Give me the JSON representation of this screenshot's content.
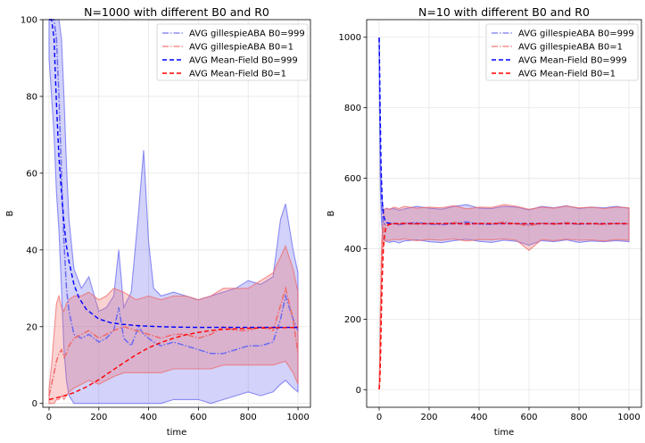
{
  "chart_data": [
    {
      "type": "line",
      "title": "N=1000 with different B0 and R0",
      "xlabel": "time",
      "ylabel": "B",
      "xlim": [
        -25,
        1050
      ],
      "ylim": [
        -1,
        100
      ],
      "xticks": [
        0,
        200,
        400,
        600,
        800,
        1000
      ],
      "yticks": [
        0,
        20,
        40,
        60,
        80,
        100
      ],
      "xtick_labels": [
        "0",
        "200",
        "400",
        "600",
        "800",
        "1000"
      ],
      "ytick_labels": [
        "0",
        "20",
        "40",
        "60",
        "80",
        "100"
      ],
      "grid": true,
      "legend_position": "top-right",
      "series": [
        {
          "name": "AVG gillespieABA B0=999",
          "style": "dashdot",
          "color": "#6a6af0",
          "x": [
            0,
            10,
            20,
            30,
            40,
            50,
            60,
            70,
            80,
            100,
            130,
            160,
            200,
            230,
            260,
            280,
            300,
            330,
            360,
            380,
            400,
            420,
            450,
            500,
            550,
            600,
            650,
            700,
            750,
            800,
            850,
            900,
            930,
            950,
            980,
            1000
          ],
          "values": [
            100,
            100,
            100,
            95,
            80,
            60,
            42,
            30,
            24,
            18,
            17,
            18,
            16,
            17,
            19,
            25,
            17,
            15,
            20,
            18,
            17,
            16,
            15,
            16,
            15,
            14,
            13,
            13,
            14,
            15,
            15,
            16,
            22,
            28,
            22,
            19
          ],
          "band_upper": [
            100,
            100,
            100,
            100,
            100,
            95,
            80,
            62,
            48,
            35,
            30,
            33,
            24,
            25,
            28,
            40,
            25,
            29,
            50,
            66,
            42,
            30,
            28,
            29,
            28,
            27,
            28,
            29,
            30,
            32,
            31,
            33,
            48,
            52,
            40,
            34
          ],
          "band_lower": [
            90,
            80,
            70,
            55,
            45,
            30,
            14,
            6,
            2,
            0,
            0,
            0,
            0,
            0,
            0,
            0,
            0,
            0,
            0,
            0,
            0,
            0,
            0,
            1,
            1,
            1,
            0,
            1,
            2,
            3,
            2,
            3,
            5,
            6,
            4,
            3
          ]
        },
        {
          "name": "AVG gillespieABA B0=1",
          "style": "dashdot",
          "color": "#f06a6a",
          "x": [
            0,
            10,
            20,
            30,
            40,
            50,
            60,
            70,
            80,
            100,
            130,
            160,
            200,
            230,
            260,
            300,
            350,
            400,
            450,
            500,
            550,
            600,
            650,
            700,
            750,
            800,
            850,
            900,
            950,
            980,
            1000
          ],
          "values": [
            2,
            5,
            8,
            11,
            13,
            14,
            12,
            13,
            15,
            17,
            18,
            19,
            17,
            18,
            19,
            20,
            19,
            18,
            17,
            18,
            18,
            17,
            18,
            20,
            19,
            19,
            20,
            19,
            30,
            22,
            13
          ],
          "band_upper": [
            4,
            10,
            18,
            26,
            28,
            25,
            24,
            26,
            27,
            28,
            28,
            29,
            27,
            28,
            30,
            29,
            27,
            28,
            27,
            28,
            28,
            27,
            28,
            30,
            30,
            30,
            32,
            34,
            41,
            35,
            29
          ],
          "band_lower": [
            0,
            0,
            0,
            1,
            1,
            2,
            1,
            2,
            3,
            4,
            5,
            6,
            5,
            6,
            7,
            8,
            8,
            8,
            8,
            9,
            9,
            9,
            9,
            10,
            10,
            10,
            10,
            10,
            11,
            8,
            5
          ]
        },
        {
          "name": "AVG Mean-Field B0=999",
          "style": "dashed",
          "color": "#0000ff",
          "x": [
            0,
            10,
            20,
            30,
            40,
            50,
            60,
            70,
            80,
            100,
            120,
            150,
            200,
            250,
            300,
            350,
            400,
            500,
            600,
            700,
            800,
            900,
            1000
          ],
          "values": [
            100,
            100,
            95,
            78,
            64,
            55,
            47,
            41,
            37,
            31,
            27.5,
            24.5,
            22,
            21,
            20.6,
            20.3,
            20.1,
            19.9,
            19.8,
            19.8,
            19.8,
            19.8,
            19.8
          ]
        },
        {
          "name": "AVG Mean-Field B0=1",
          "style": "dashed",
          "color": "#ff0000",
          "x": [
            0,
            50,
            100,
            150,
            200,
            250,
            300,
            350,
            400,
            450,
            500,
            550,
            600,
            650,
            700,
            800,
            900,
            1000
          ],
          "values": [
            1,
            1.8,
            2.8,
            4.3,
            6.2,
            8.4,
            10.6,
            12.7,
            14.5,
            15.9,
            17,
            17.9,
            18.5,
            19,
            19.3,
            19.6,
            19.7,
            19.8
          ]
        }
      ]
    },
    {
      "type": "line",
      "title": "N=10 with different B0 and R0",
      "xlabel": "time",
      "ylabel": "B",
      "xlim": [
        -50,
        1050
      ],
      "ylim": [
        -50,
        1050
      ],
      "xticks": [
        0,
        200,
        400,
        600,
        800,
        1000
      ],
      "yticks": [
        0,
        200,
        400,
        600,
        800,
        1000
      ],
      "xtick_labels": [
        "0",
        "200",
        "400",
        "600",
        "800",
        "1000"
      ],
      "ytick_labels": [
        "0",
        "200",
        "400",
        "600",
        "800",
        "1000"
      ],
      "grid": true,
      "legend_position": "top-right",
      "series": [
        {
          "name": "AVG gillespieABA B0=999",
          "style": "dashdot",
          "color": "#6a6af0",
          "x": [
            0,
            2,
            5,
            10,
            15,
            20,
            30,
            40,
            60,
            80,
            100,
            150,
            200,
            250,
            300,
            350,
            400,
            450,
            500,
            550,
            600,
            650,
            700,
            750,
            800,
            850,
            900,
            950,
            1000
          ],
          "values": [
            999,
            800,
            620,
            520,
            480,
            470,
            475,
            470,
            472,
            468,
            471,
            474,
            470,
            468,
            472,
            476,
            470,
            469,
            473,
            471,
            468,
            472,
            470,
            474,
            469,
            471,
            470,
            472,
            470
          ],
          "band_upper": [
            999,
            850,
            680,
            560,
            520,
            510,
            515,
            512,
            514,
            509,
            513,
            520,
            515,
            512,
            520,
            525,
            515,
            514,
            520,
            518,
            510,
            520,
            516,
            522,
            514,
            518,
            516,
            520,
            515
          ],
          "band_lower": [
            990,
            760,
            560,
            470,
            430,
            425,
            420,
            418,
            421,
            416,
            422,
            425,
            420,
            417,
            423,
            427,
            421,
            418,
            424,
            421,
            410,
            423,
            420,
            425,
            418,
            422,
            420,
            423,
            420
          ]
        },
        {
          "name": "AVG gillespieABA B0=1",
          "style": "dashdot",
          "color": "#f06a6a",
          "x": [
            0,
            2,
            5,
            8,
            10,
            15,
            20,
            30,
            40,
            60,
            80,
            100,
            150,
            200,
            250,
            300,
            350,
            400,
            450,
            500,
            550,
            600,
            650,
            700,
            750,
            800,
            850,
            900,
            950,
            1000
          ],
          "values": [
            1,
            50,
            180,
            300,
            380,
            440,
            465,
            470,
            468,
            472,
            470,
            474,
            469,
            472,
            470,
            475,
            468,
            472,
            471,
            476,
            470,
            465,
            472,
            469,
            474,
            470,
            471,
            468,
            472,
            470
          ],
          "band_upper": [
            1,
            80,
            230,
            350,
            420,
            480,
            510,
            515,
            512,
            518,
            514,
            520,
            515,
            518,
            516,
            522,
            513,
            518,
            517,
            525,
            520,
            512,
            518,
            515,
            521,
            516,
            518,
            514,
            518,
            516
          ],
          "band_lower": [
            1,
            20,
            130,
            250,
            340,
            400,
            420,
            425,
            423,
            427,
            425,
            428,
            423,
            426,
            424,
            428,
            422,
            426,
            425,
            428,
            424,
            395,
            426,
            423,
            427,
            424,
            425,
            422,
            426,
            424
          ]
        },
        {
          "name": "AVG Mean-Field B0=999",
          "style": "dashed",
          "color": "#0000ff",
          "x": [
            0,
            2,
            4,
            6,
            8,
            10,
            13,
            16,
            20,
            25,
            30,
            40,
            60,
            100,
            200,
            400,
            600,
            800,
            1000
          ],
          "values": [
            999,
            900,
            800,
            700,
            630,
            580,
            530,
            505,
            488,
            478,
            474,
            472,
            471,
            471,
            471,
            471,
            471,
            471,
            471
          ]
        },
        {
          "name": "AVG Mean-Field B0=1",
          "style": "dashed",
          "color": "#ff0000",
          "x": [
            0,
            2,
            4,
            6,
            8,
            10,
            12,
            15,
            18,
            22,
            26,
            30,
            40,
            60,
            100,
            200,
            400,
            600,
            800,
            1000
          ],
          "values": [
            1,
            15,
            50,
            110,
            180,
            250,
            310,
            370,
            410,
            440,
            456,
            464,
            469,
            471,
            471,
            471,
            471,
            471,
            471,
            471
          ]
        }
      ]
    }
  ]
}
